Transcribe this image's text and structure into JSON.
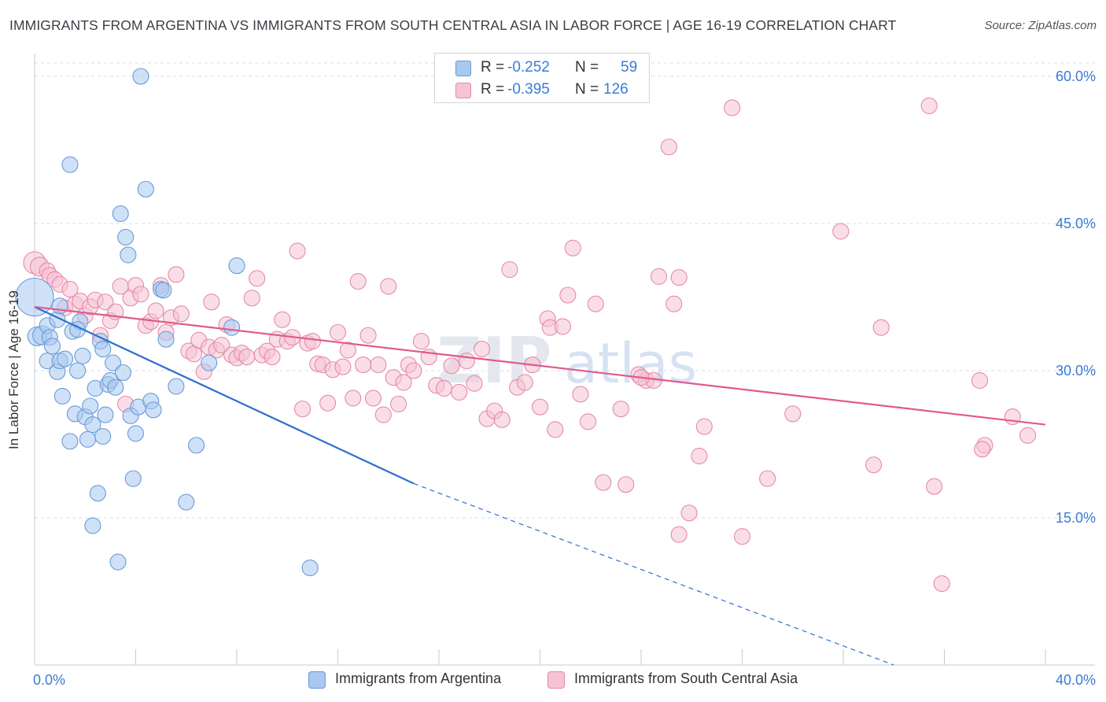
{
  "title": "IMMIGRANTS FROM ARGENTINA VS IMMIGRANTS FROM SOUTH CENTRAL ASIA IN LABOR FORCE | AGE 16-19 CORRELATION CHART",
  "source": "Source: ZipAtlas.com",
  "watermark": {
    "zip": "ZIP",
    "atlas": "atlas"
  },
  "stats": {
    "r_label": "R =",
    "n_label": "N =",
    "rows": [
      {
        "r": "-0.252",
        "n": "59",
        "color": "#a8c8f0"
      },
      {
        "r": "-0.395",
        "n": "126",
        "color": "#f4b8cc"
      }
    ]
  },
  "legend": [
    {
      "label": "Immigrants from Argentina",
      "color": "#a8c8f0"
    },
    {
      "label": "Immigrants from South Central Asia",
      "color": "#f4b8cc"
    }
  ],
  "colors": {
    "blue_point": "#a8c8f0",
    "blue_stroke": "#6a9ad8",
    "blue_line": "#2f6fd0",
    "pink_point": "#f6c3d3",
    "pink_stroke": "#e58aa8",
    "pink_line": "#e05a8a",
    "tick_text": "#3a7bd5",
    "grid": "#d9dde3"
  },
  "chart_data": {
    "type": "scatter",
    "ylabel": "In Labor Force | Age 16-19",
    "xlim": [
      0,
      40
    ],
    "ylim": [
      0,
      62
    ],
    "x_tick_labels": [
      {
        "value": 0,
        "label": "0.0%"
      },
      {
        "value": 40,
        "label": "40.0%"
      }
    ],
    "y_tick_labels": [
      {
        "value": 15,
        "label": "15.0%"
      },
      {
        "value": 30,
        "label": "30.0%"
      },
      {
        "value": 45,
        "label": "45.0%"
      },
      {
        "value": 60,
        "label": "60.0%"
      }
    ],
    "x_minor_ticks": [
      4,
      8,
      12,
      16,
      20,
      24,
      28,
      32,
      36,
      40
    ],
    "grid": true,
    "series": [
      {
        "name": "Immigrants from Argentina",
        "color": "#a8c8f0",
        "trend": {
          "x": [
            0,
            15.0
          ],
          "y": [
            36.5,
            18.5
          ],
          "dashed_to": [
            34.0,
            0.0
          ]
        },
        "points": [
          [
            0.0,
            37.5,
            24
          ],
          [
            0.1,
            33.5,
            12
          ],
          [
            0.3,
            33.6,
            12
          ],
          [
            0.5,
            34.6,
            10
          ],
          [
            0.6,
            33.4,
            10
          ],
          [
            0.5,
            31.0,
            10
          ],
          [
            0.7,
            32.5,
            10
          ],
          [
            0.9,
            35.2,
            10
          ],
          [
            1.0,
            36.6,
            10
          ],
          [
            0.9,
            29.9,
            10
          ],
          [
            1.0,
            31.0,
            10
          ],
          [
            1.2,
            31.2,
            10
          ],
          [
            1.1,
            27.4,
            10
          ],
          [
            1.4,
            51.0,
            10
          ],
          [
            1.5,
            34.0,
            10
          ],
          [
            1.6,
            25.6,
            10
          ],
          [
            1.7,
            30.0,
            10
          ],
          [
            1.8,
            35.0,
            10
          ],
          [
            1.9,
            31.5,
            10
          ],
          [
            2.0,
            25.3,
            10
          ],
          [
            2.1,
            23.0,
            10
          ],
          [
            1.4,
            22.8,
            10
          ],
          [
            2.2,
            26.4,
            10
          ],
          [
            2.3,
            24.5,
            10
          ],
          [
            2.4,
            28.2,
            10
          ],
          [
            2.5,
            17.5,
            10
          ],
          [
            2.6,
            33.0,
            10
          ],
          [
            2.7,
            23.3,
            10
          ],
          [
            2.8,
            25.5,
            10
          ],
          [
            2.9,
            28.6,
            10
          ],
          [
            3.0,
            29.0,
            10
          ],
          [
            3.1,
            30.8,
            10
          ],
          [
            3.2,
            28.3,
            10
          ],
          [
            3.4,
            46.0,
            10
          ],
          [
            3.5,
            29.8,
            10
          ],
          [
            3.6,
            43.6,
            10
          ],
          [
            3.7,
            41.8,
            10
          ],
          [
            3.8,
            25.4,
            10
          ],
          [
            3.9,
            19.0,
            10
          ],
          [
            4.0,
            23.6,
            10
          ],
          [
            4.1,
            26.3,
            10
          ],
          [
            4.2,
            60.0,
            10
          ],
          [
            4.4,
            48.5,
            10
          ],
          [
            4.6,
            26.9,
            10
          ],
          [
            4.7,
            26.0,
            10
          ],
          [
            5.0,
            38.3,
            10
          ],
          [
            5.2,
            33.2,
            10
          ],
          [
            5.1,
            38.2,
            10
          ],
          [
            5.6,
            28.4,
            10
          ],
          [
            6.0,
            16.6,
            10
          ],
          [
            6.4,
            22.4,
            10
          ],
          [
            6.9,
            30.8,
            10
          ],
          [
            8.0,
            40.7,
            10
          ],
          [
            7.8,
            34.4,
            10
          ],
          [
            10.9,
            9.9,
            10
          ],
          [
            2.3,
            14.2,
            10
          ],
          [
            3.3,
            10.5,
            10
          ],
          [
            1.7,
            34.2,
            10
          ],
          [
            2.7,
            32.2,
            10
          ]
        ]
      },
      {
        "name": "Immigrants from South Central Asia",
        "color": "#f4b8cc",
        "trend": {
          "x": [
            0,
            40
          ],
          "y": [
            36.5,
            24.5
          ]
        },
        "points": [
          [
            0.0,
            41.0,
            14
          ],
          [
            0.2,
            40.6,
            12
          ],
          [
            0.5,
            40.2,
            10
          ],
          [
            0.6,
            39.7,
            10
          ],
          [
            0.8,
            39.3,
            10
          ],
          [
            1.0,
            38.8,
            10
          ],
          [
            1.2,
            36.4,
            10
          ],
          [
            1.4,
            38.3,
            10
          ],
          [
            1.6,
            36.8,
            10
          ],
          [
            1.8,
            37.1,
            10
          ],
          [
            2.0,
            35.6,
            10
          ],
          [
            2.2,
            36.5,
            10
          ],
          [
            2.4,
            37.2,
            10
          ],
          [
            2.6,
            33.6,
            10
          ],
          [
            2.8,
            37.0,
            10
          ],
          [
            3.0,
            35.1,
            10
          ],
          [
            3.2,
            36.0,
            10
          ],
          [
            3.4,
            38.6,
            10
          ],
          [
            3.6,
            26.6,
            10
          ],
          [
            3.8,
            37.4,
            10
          ],
          [
            4.0,
            38.7,
            10
          ],
          [
            4.2,
            37.8,
            10
          ],
          [
            4.4,
            34.6,
            10
          ],
          [
            4.6,
            35.0,
            10
          ],
          [
            4.8,
            36.1,
            10
          ],
          [
            5.0,
            38.7,
            10
          ],
          [
            5.2,
            33.9,
            10
          ],
          [
            5.4,
            35.4,
            10
          ],
          [
            5.6,
            39.8,
            10
          ],
          [
            5.8,
            35.8,
            10
          ],
          [
            6.1,
            32.0,
            10
          ],
          [
            6.3,
            31.7,
            10
          ],
          [
            6.5,
            33.1,
            10
          ],
          [
            6.7,
            29.9,
            10
          ],
          [
            6.9,
            32.4,
            10
          ],
          [
            7.0,
            37.0,
            10
          ],
          [
            7.2,
            32.1,
            10
          ],
          [
            7.4,
            32.6,
            10
          ],
          [
            7.6,
            34.7,
            10
          ],
          [
            7.8,
            31.6,
            10
          ],
          [
            8.0,
            31.3,
            10
          ],
          [
            8.2,
            31.8,
            10
          ],
          [
            8.4,
            31.4,
            10
          ],
          [
            8.6,
            37.4,
            10
          ],
          [
            8.8,
            39.4,
            10
          ],
          [
            9.0,
            31.6,
            10
          ],
          [
            9.2,
            32.0,
            10
          ],
          [
            9.4,
            31.4,
            10
          ],
          [
            9.6,
            33.2,
            10
          ],
          [
            9.8,
            35.2,
            10
          ],
          [
            10.0,
            33.0,
            10
          ],
          [
            10.2,
            33.4,
            10
          ],
          [
            10.4,
            42.2,
            10
          ],
          [
            10.6,
            26.1,
            10
          ],
          [
            10.8,
            32.8,
            10
          ],
          [
            11.0,
            33.0,
            10
          ],
          [
            11.2,
            30.7,
            10
          ],
          [
            11.4,
            30.6,
            10
          ],
          [
            11.6,
            26.7,
            10
          ],
          [
            11.8,
            30.1,
            10
          ],
          [
            12.0,
            33.9,
            10
          ],
          [
            12.2,
            30.4,
            10
          ],
          [
            12.4,
            32.1,
            10
          ],
          [
            12.6,
            27.2,
            10
          ],
          [
            12.8,
            39.1,
            10
          ],
          [
            13.0,
            30.6,
            10
          ],
          [
            13.2,
            33.6,
            10
          ],
          [
            13.4,
            27.2,
            10
          ],
          [
            13.6,
            30.6,
            10
          ],
          [
            13.8,
            25.5,
            10
          ],
          [
            14.0,
            38.6,
            10
          ],
          [
            14.2,
            29.3,
            10
          ],
          [
            14.4,
            26.6,
            10
          ],
          [
            14.6,
            28.8,
            10
          ],
          [
            14.8,
            30.6,
            10
          ],
          [
            15.0,
            30.0,
            10
          ],
          [
            15.3,
            33.0,
            10
          ],
          [
            15.6,
            31.4,
            10
          ],
          [
            15.9,
            28.5,
            10
          ],
          [
            16.2,
            28.2,
            10
          ],
          [
            16.5,
            30.5,
            10
          ],
          [
            16.8,
            27.8,
            10
          ],
          [
            17.1,
            31.0,
            10
          ],
          [
            17.4,
            28.7,
            10
          ],
          [
            17.7,
            32.2,
            10
          ],
          [
            17.9,
            25.1,
            10
          ],
          [
            18.2,
            25.9,
            10
          ],
          [
            18.5,
            25.0,
            10
          ],
          [
            18.8,
            40.3,
            10
          ],
          [
            19.1,
            28.3,
            10
          ],
          [
            19.4,
            28.8,
            10
          ],
          [
            19.7,
            30.6,
            10
          ],
          [
            20.0,
            26.3,
            10
          ],
          [
            20.3,
            35.3,
            10
          ],
          [
            20.4,
            34.4,
            10
          ],
          [
            20.6,
            24.0,
            10
          ],
          [
            20.9,
            34.5,
            10
          ],
          [
            21.1,
            37.7,
            10
          ],
          [
            21.3,
            42.5,
            10
          ],
          [
            21.6,
            27.6,
            10
          ],
          [
            21.9,
            24.8,
            10
          ],
          [
            22.2,
            36.8,
            10
          ],
          [
            22.5,
            18.6,
            10
          ],
          [
            23.2,
            26.1,
            10
          ],
          [
            23.4,
            18.4,
            10
          ],
          [
            23.9,
            29.6,
            10
          ],
          [
            24.2,
            29.0,
            10
          ],
          [
            24.5,
            29.0,
            10
          ],
          [
            24.0,
            29.3,
            10
          ],
          [
            24.7,
            39.6,
            10
          ],
          [
            25.1,
            52.8,
            10
          ],
          [
            25.3,
            36.8,
            10
          ],
          [
            25.5,
            39.5,
            10
          ],
          [
            25.9,
            15.5,
            10
          ],
          [
            26.3,
            21.3,
            10
          ],
          [
            25.5,
            13.3,
            10
          ],
          [
            26.5,
            24.3,
            10
          ],
          [
            27.6,
            56.8,
            10
          ],
          [
            28.0,
            13.1,
            10
          ],
          [
            29.0,
            19.0,
            10
          ],
          [
            30.0,
            25.6,
            10
          ],
          [
            31.9,
            44.2,
            10
          ],
          [
            33.2,
            20.4,
            10
          ],
          [
            33.5,
            34.4,
            10
          ],
          [
            35.4,
            57.0,
            10
          ],
          [
            35.6,
            18.2,
            10
          ],
          [
            35.9,
            8.3,
            10
          ],
          [
            37.4,
            29.0,
            10
          ],
          [
            37.6,
            22.4,
            10
          ],
          [
            37.5,
            22.0,
            10
          ],
          [
            38.7,
            25.3,
            10
          ],
          [
            39.3,
            23.4,
            10
          ]
        ]
      }
    ]
  }
}
